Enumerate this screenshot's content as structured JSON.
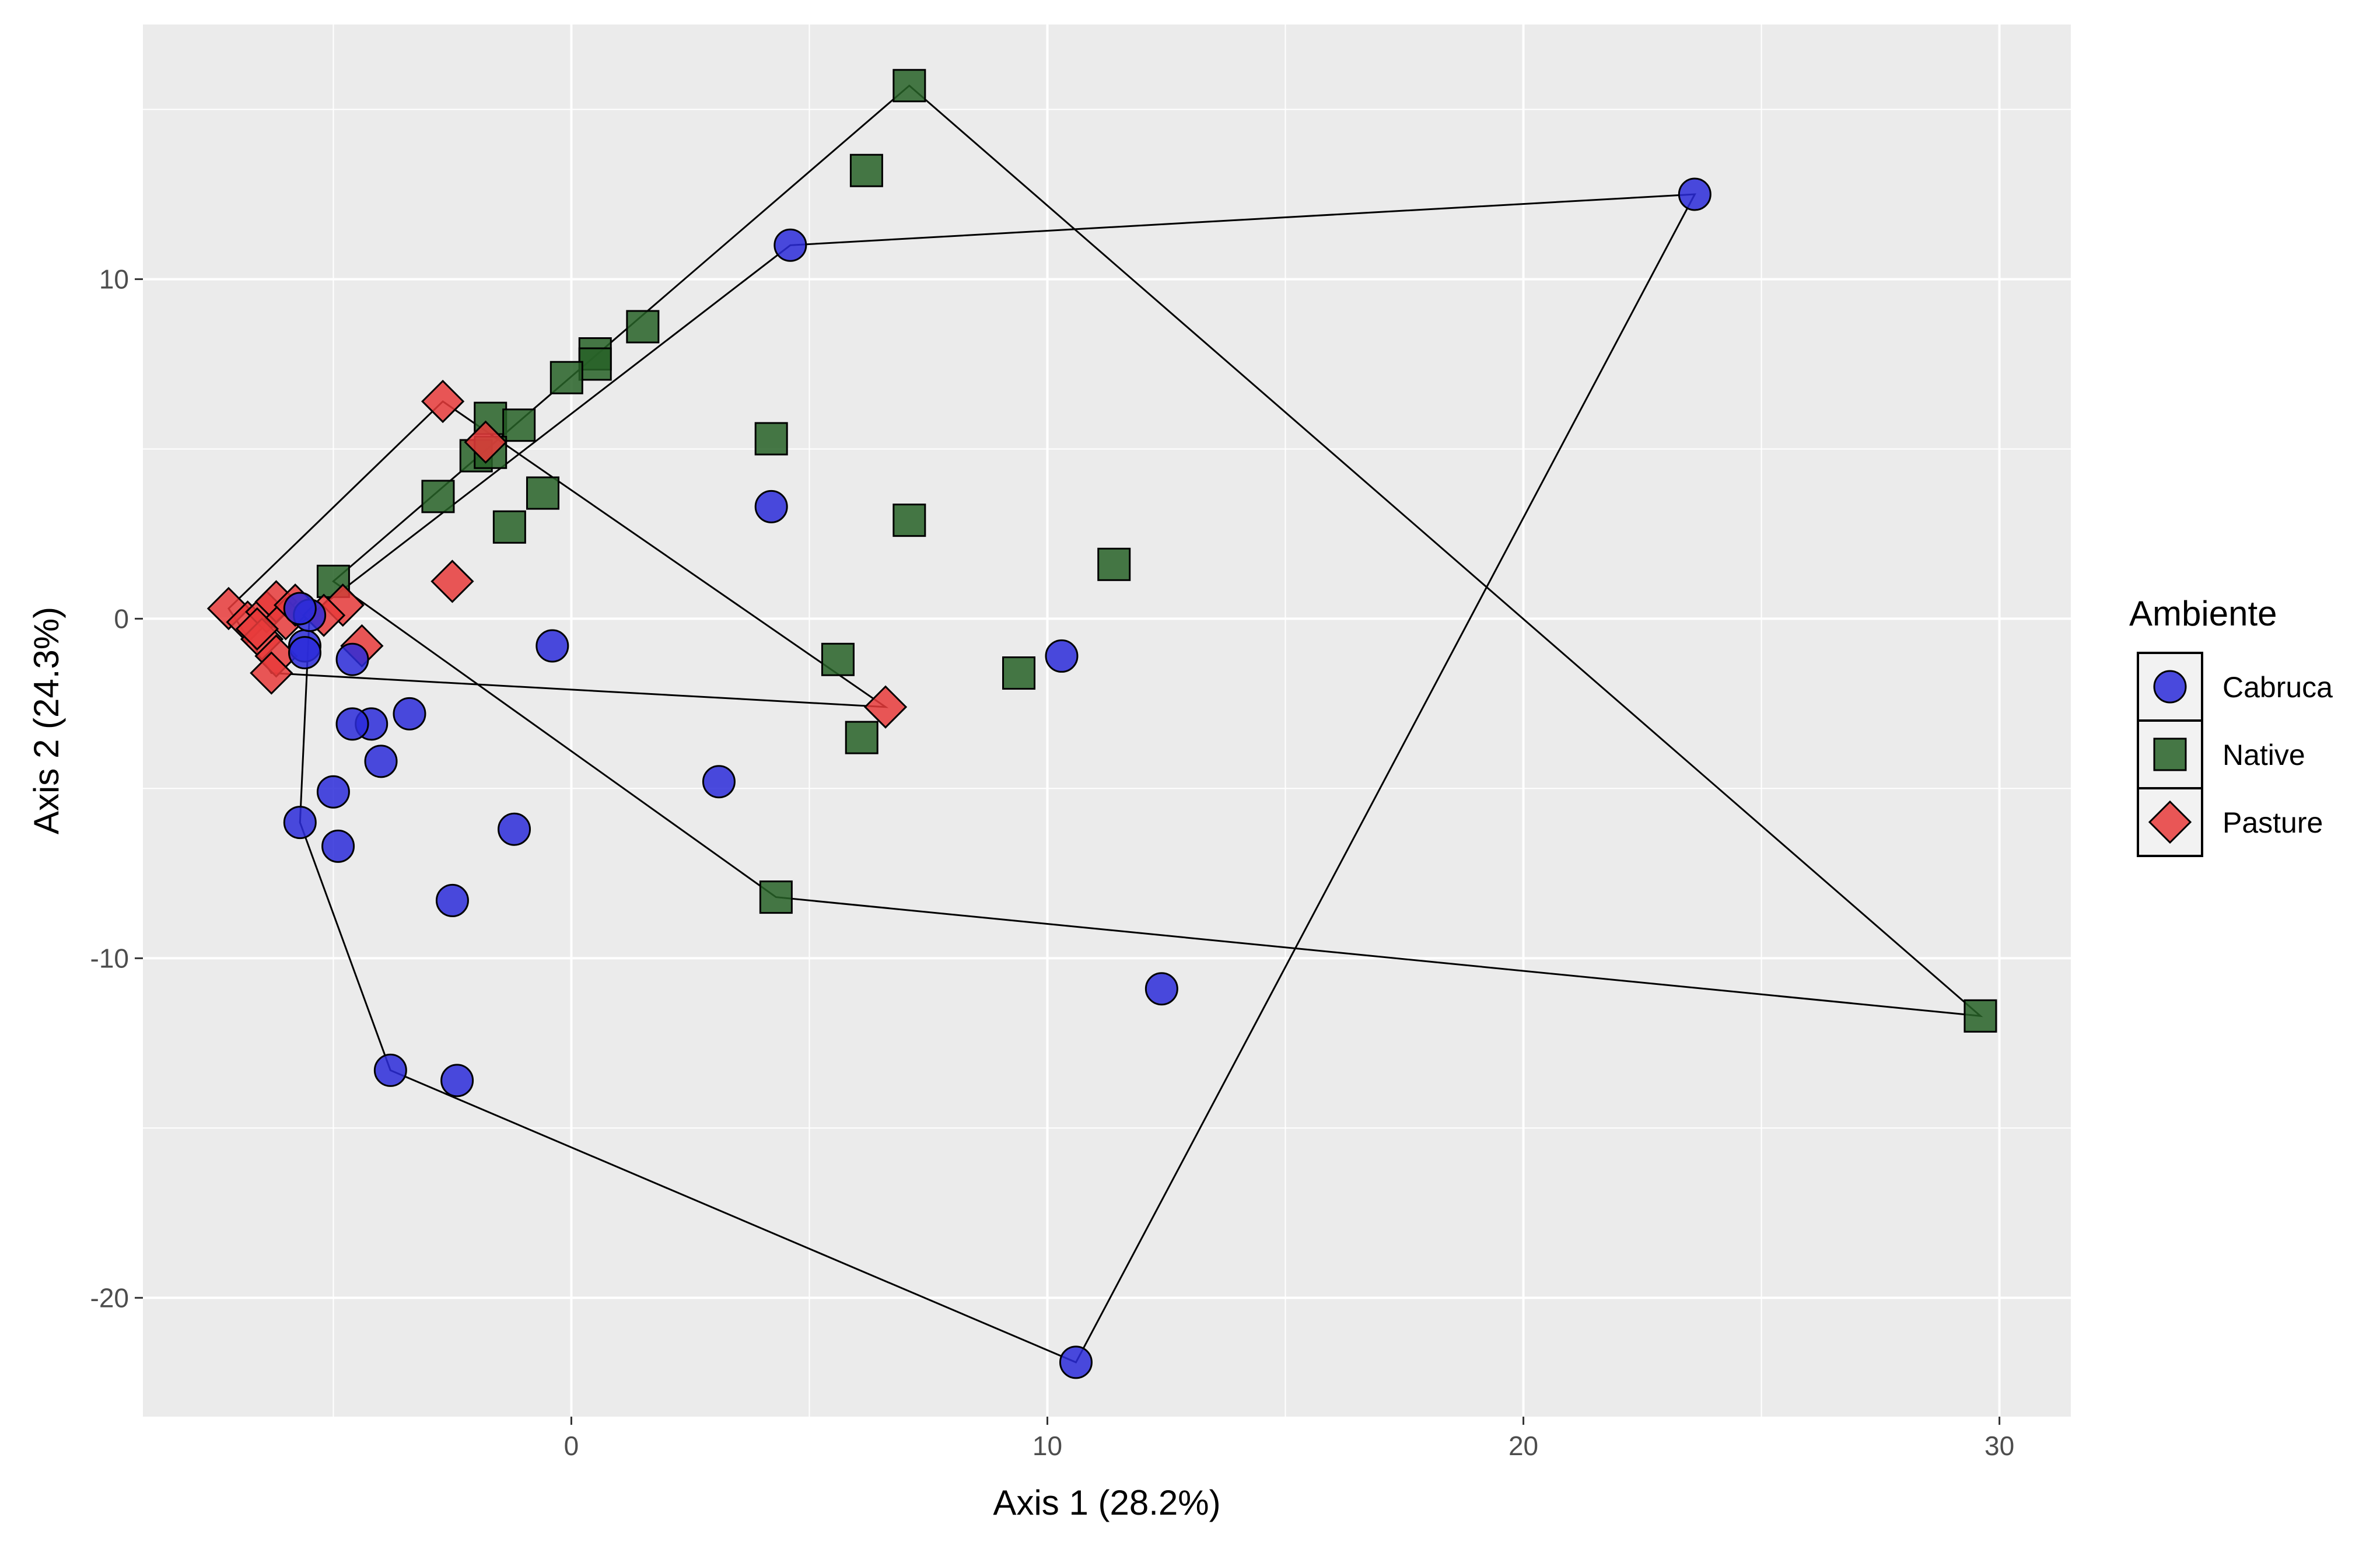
{
  "chart_data": {
    "type": "scatter",
    "title": "",
    "xlabel": "Axis 1 (28.2%)",
    "ylabel": "Axis 2 (24.3%)",
    "xlim": [
      -9,
      31.5
    ],
    "ylim": [
      -23.5,
      17.5
    ],
    "x_ticks": [
      0,
      10,
      20,
      30
    ],
    "y_ticks": [
      10,
      0,
      -10,
      -20
    ],
    "x_tick_labels": [
      "0",
      "10",
      "20",
      "30"
    ],
    "y_tick_labels": [
      "10",
      "0",
      "-10",
      "-20"
    ],
    "grid": true,
    "legend_title": "Ambiente",
    "legend_position": "right",
    "panel_background": "#ebebeb",
    "series": [
      {
        "name": "Cabruca",
        "shape": "circle",
        "color": "#2b2bd9",
        "points": [
          [
            23.6,
            12.5
          ],
          [
            4.6,
            11.0
          ],
          [
            4.2,
            3.3
          ],
          [
            -0.4,
            -0.8
          ],
          [
            10.3,
            -1.1
          ],
          [
            3.1,
            -4.8
          ],
          [
            12.4,
            -10.9
          ],
          [
            10.6,
            -21.9
          ],
          [
            -3.8,
            -13.3
          ],
          [
            -2.4,
            -13.6
          ],
          [
            -2.5,
            -8.3
          ],
          [
            -1.2,
            -6.2
          ],
          [
            -3.4,
            -2.8
          ],
          [
            -4.2,
            -3.1
          ],
          [
            -4.6,
            -3.1
          ],
          [
            -4.0,
            -4.2
          ],
          [
            -5.0,
            -5.1
          ],
          [
            -4.9,
            -6.7
          ],
          [
            -5.7,
            -6.0
          ],
          [
            -4.6,
            -1.2
          ],
          [
            -5.6,
            -0.8
          ],
          [
            -5.6,
            -1.0
          ],
          [
            -5.5,
            0.1
          ],
          [
            -5.7,
            0.3
          ]
        ],
        "hull": [
          [
            23.6,
            12.5
          ],
          [
            4.6,
            11.0
          ],
          [
            -5.5,
            0.1
          ],
          [
            -5.7,
            -6.0
          ],
          [
            -3.8,
            -13.3
          ],
          [
            10.6,
            -21.9
          ]
        ]
      },
      {
        "name": "Native",
        "shape": "square",
        "color": "#276127",
        "points": [
          [
            7.1,
            15.7
          ],
          [
            6.2,
            13.2
          ],
          [
            1.5,
            8.6
          ],
          [
            0.5,
            7.8
          ],
          [
            0.5,
            7.5
          ],
          [
            -0.1,
            7.1
          ],
          [
            -1.7,
            5.9
          ],
          [
            -1.1,
            5.7
          ],
          [
            -2.0,
            4.8
          ],
          [
            -1.7,
            4.9
          ],
          [
            -2.8,
            3.6
          ],
          [
            -0.6,
            3.7
          ],
          [
            -1.3,
            2.7
          ],
          [
            4.2,
            5.3
          ],
          [
            7.1,
            2.9
          ],
          [
            11.4,
            1.6
          ],
          [
            -5.0,
            1.1
          ],
          [
            5.6,
            -1.2
          ],
          [
            9.4,
            -1.6
          ],
          [
            6.1,
            -3.5
          ],
          [
            4.3,
            -8.2
          ],
          [
            29.6,
            -11.7
          ]
        ],
        "hull": [
          [
            7.1,
            15.7
          ],
          [
            29.6,
            -11.7
          ],
          [
            4.3,
            -8.2
          ],
          [
            -5.0,
            1.1
          ]
        ]
      },
      {
        "name": "Pasture",
        "shape": "diamond",
        "color": "#e83b3b",
        "points": [
          [
            -2.7,
            6.4
          ],
          [
            -1.8,
            5.2
          ],
          [
            -2.5,
            1.1
          ],
          [
            6.6,
            -2.6
          ],
          [
            -7.2,
            0.3
          ],
          [
            -6.8,
            -0.1
          ],
          [
            -6.4,
            0.2
          ],
          [
            -6.2,
            0.5
          ],
          [
            -6.0,
            0.0
          ],
          [
            -6.5,
            -0.6
          ],
          [
            -6.2,
            -1.1
          ],
          [
            -6.3,
            -1.6
          ],
          [
            -5.8,
            0.4
          ],
          [
            -4.8,
            0.4
          ],
          [
            -4.4,
            -0.8
          ],
          [
            -5.2,
            0.1
          ],
          [
            -6.6,
            -0.3
          ]
        ],
        "hull": [
          [
            -2.7,
            6.4
          ],
          [
            6.6,
            -2.6
          ],
          [
            -6.3,
            -1.6
          ],
          [
            -7.2,
            0.3
          ]
        ]
      }
    ]
  }
}
